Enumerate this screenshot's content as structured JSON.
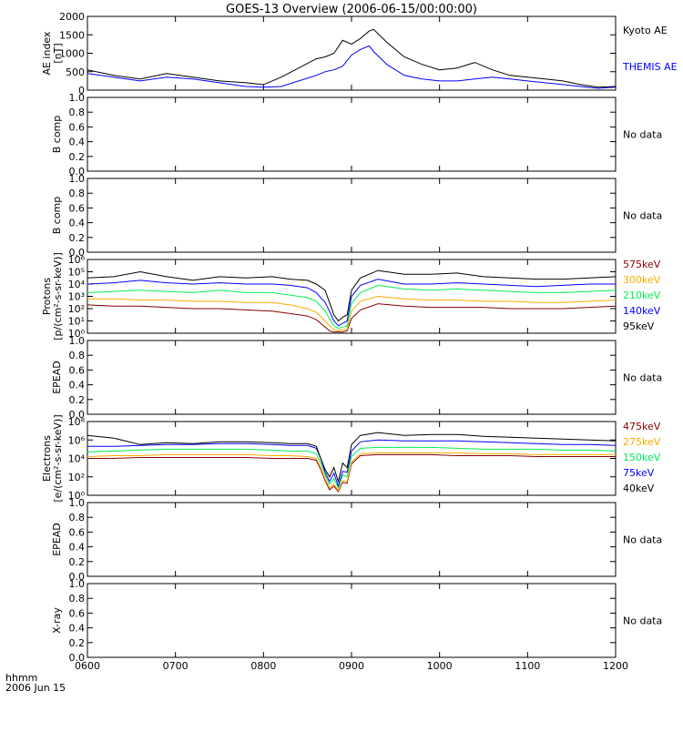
{
  "title": "GOES-13 Overview (2006-06-15/00:00:00)",
  "footer": {
    "line1": "hhmm",
    "line2": "2006 Jun 15"
  },
  "colors": {
    "black": "#000000",
    "blue": "#0000ff",
    "green": "#00ee55",
    "orange": "#ffaa00",
    "darkred": "#880000",
    "background": "#ffffff"
  },
  "xaxis": {
    "range": [
      "06:00",
      "12:00"
    ],
    "ticks": [
      "0600",
      "0700",
      "0800",
      "0900",
      "1000",
      "1100",
      "1200"
    ]
  },
  "panels": [
    {
      "id": "ae",
      "ylabel": [
        "AE index",
        "[nT]"
      ],
      "scale": "linear",
      "ylim": [
        0,
        2000
      ],
      "ticks": [
        "0",
        "500",
        "1000",
        "1500",
        "2000"
      ],
      "legend": [
        {
          "label": "Kyoto AE",
          "color": "#000000"
        },
        {
          "label": "THEMIS AE",
          "color": "#0000ff"
        }
      ]
    },
    {
      "id": "bcomp1",
      "ylabel": [
        "B comp"
      ],
      "scale": "linear",
      "ylim": [
        0,
        1
      ],
      "ticks": [
        "0.0",
        "0.2",
        "0.4",
        "0.6",
        "0.8",
        "1.0"
      ],
      "nodata": "No data"
    },
    {
      "id": "bcomp2",
      "ylabel": [
        "B comp"
      ],
      "scale": "linear",
      "ylim": [
        0,
        1
      ],
      "ticks": [
        "0.0",
        "0.2",
        "0.4",
        "0.6",
        "0.8",
        "1.0"
      ],
      "nodata": "No data"
    },
    {
      "id": "protons",
      "ylabel": [
        "Protons",
        "[p/(cm²-s-sr-keV)]"
      ],
      "scale": "log",
      "ylim": [
        0,
        6
      ],
      "ticks": [
        "10⁰",
        "10¹",
        "10²",
        "10³",
        "10⁴",
        "10⁵",
        "10⁶"
      ],
      "legend": [
        {
          "label": "575keV",
          "color": "#880000"
        },
        {
          "label": "300keV",
          "color": "#ffaa00"
        },
        {
          "label": "210keV",
          "color": "#00ee55"
        },
        {
          "label": "140keV",
          "color": "#0000ff"
        },
        {
          "label": "95keV",
          "color": "#000000"
        }
      ]
    },
    {
      "id": "epead1",
      "ylabel": [
        "EPEAD"
      ],
      "scale": "linear",
      "ylim": [
        0,
        1
      ],
      "ticks": [
        "0.0",
        "0.2",
        "0.4",
        "0.6",
        "0.8",
        "1.0"
      ],
      "nodata": "No data"
    },
    {
      "id": "electrons",
      "ylabel": [
        "Electrons",
        "[e/(cm²-s-sr-keV)]"
      ],
      "scale": "log",
      "ylim": [
        0,
        8
      ],
      "ticks": [
        "10⁰",
        "10²",
        "10⁴",
        "10⁶",
        "10⁸"
      ],
      "legend": [
        {
          "label": "475keV",
          "color": "#880000"
        },
        {
          "label": "275keV",
          "color": "#ffaa00"
        },
        {
          "label": "150keV",
          "color": "#00ee55"
        },
        {
          "label": "75keV",
          "color": "#0000ff"
        },
        {
          "label": "40keV",
          "color": "#000000"
        }
      ]
    },
    {
      "id": "epead2",
      "ylabel": [
        "EPEAD"
      ],
      "scale": "linear",
      "ylim": [
        0,
        1
      ],
      "ticks": [
        "0.0",
        "0.2",
        "0.4",
        "0.6",
        "0.8",
        "1.0"
      ],
      "nodata": "No data"
    },
    {
      "id": "xray",
      "ylabel": [
        "X-ray"
      ],
      "scale": "linear",
      "ylim": [
        0,
        1
      ],
      "ticks": [
        "0.0",
        "0.2",
        "0.4",
        "0.6",
        "0.8",
        "1.0"
      ],
      "nodata": "No data"
    }
  ],
  "chart_data": {
    "type": "line",
    "title": "GOES-13 Overview (2006-06-15/00:00:00)",
    "xlabel": "hhmm",
    "xrange_hours": [
      6,
      12
    ],
    "ae": {
      "x": [
        6.0,
        6.3,
        6.6,
        6.9,
        7.2,
        7.5,
        7.8,
        8.0,
        8.2,
        8.4,
        8.6,
        8.7,
        8.8,
        8.9,
        9.0,
        9.1,
        9.2,
        9.25,
        9.4,
        9.6,
        9.8,
        10.0,
        10.2,
        10.4,
        10.6,
        10.8,
        11.0,
        11.2,
        11.4,
        11.6,
        11.8,
        12.0
      ],
      "series": [
        {
          "name": "Kyoto AE",
          "values": [
            550,
            400,
            300,
            450,
            350,
            250,
            200,
            150,
            350,
            600,
            850,
            900,
            1000,
            1350,
            1250,
            1400,
            1600,
            1650,
            1300,
            900,
            700,
            550,
            600,
            750,
            550,
            400,
            350,
            300,
            250,
            150,
            80,
            100
          ]
        },
        {
          "name": "THEMIS AE",
          "values": [
            450,
            350,
            250,
            350,
            300,
            200,
            100,
            80,
            100,
            250,
            400,
            500,
            550,
            650,
            950,
            1100,
            1200,
            1050,
            700,
            400,
            300,
            250,
            250,
            300,
            350,
            300,
            250,
            200,
            150,
            100,
            50,
            80
          ]
        }
      ]
    },
    "protons": {
      "x": [
        6.0,
        6.3,
        6.6,
        6.9,
        7.2,
        7.5,
        7.8,
        8.1,
        8.3,
        8.5,
        8.6,
        8.7,
        8.75,
        8.8,
        8.85,
        8.9,
        8.95,
        9.0,
        9.1,
        9.3,
        9.6,
        9.9,
        10.2,
        10.5,
        10.8,
        11.1,
        11.4,
        11.7,
        12.0
      ],
      "series_log10": [
        {
          "name": "95keV",
          "values": [
            4.5,
            4.6,
            5.0,
            4.6,
            4.3,
            4.6,
            4.5,
            4.6,
            4.4,
            4.3,
            4.0,
            3.5,
            2.5,
            1.5,
            1.0,
            1.3,
            1.5,
            3.5,
            4.5,
            5.1,
            4.8,
            4.8,
            4.9,
            4.6,
            4.5,
            4.4,
            4.4,
            4.5,
            4.6
          ]
        },
        {
          "name": "140keV",
          "values": [
            4.0,
            4.1,
            4.3,
            4.1,
            4.0,
            4.1,
            4.0,
            4.0,
            3.9,
            3.7,
            3.3,
            2.5,
            1.8,
            1.0,
            0.6,
            0.8,
            1.0,
            3.0,
            3.9,
            4.4,
            4.0,
            4.0,
            4.1,
            4.0,
            3.9,
            3.8,
            3.9,
            4.0,
            4.0
          ]
        },
        {
          "name": "210keV",
          "values": [
            3.3,
            3.4,
            3.5,
            3.4,
            3.3,
            3.5,
            3.3,
            3.3,
            3.1,
            2.9,
            2.6,
            1.8,
            1.2,
            0.6,
            0.4,
            0.5,
            0.6,
            2.4,
            3.3,
            3.9,
            3.6,
            3.5,
            3.6,
            3.5,
            3.4,
            3.3,
            3.3,
            3.4,
            3.5
          ]
        },
        {
          "name": "300keV",
          "values": [
            2.8,
            2.8,
            2.7,
            2.7,
            2.6,
            2.6,
            2.5,
            2.5,
            2.3,
            2.0,
            1.7,
            1.0,
            0.6,
            0.3,
            0.2,
            0.3,
            0.3,
            1.8,
            2.6,
            3.0,
            2.8,
            2.7,
            2.7,
            2.6,
            2.6,
            2.5,
            2.5,
            2.6,
            2.7
          ]
        },
        {
          "name": "575keV",
          "values": [
            2.3,
            2.2,
            2.2,
            2.1,
            2.0,
            2.0,
            1.9,
            1.8,
            1.6,
            1.4,
            1.1,
            0.5,
            0.2,
            0.1,
            0.1,
            0.1,
            0.2,
            1.2,
            1.9,
            2.4,
            2.2,
            2.1,
            2.1,
            2.1,
            2.0,
            2.0,
            2.0,
            2.1,
            2.2
          ]
        }
      ]
    },
    "electrons": {
      "x": [
        6.0,
        6.3,
        6.6,
        6.9,
        7.2,
        7.5,
        7.8,
        8.1,
        8.3,
        8.5,
        8.6,
        8.65,
        8.7,
        8.75,
        8.8,
        8.85,
        8.9,
        8.95,
        9.0,
        9.1,
        9.3,
        9.6,
        9.9,
        10.2,
        10.5,
        10.8,
        11.1,
        11.4,
        11.7,
        12.0
      ],
      "series_log10": [
        {
          "name": "40keV",
          "values": [
            6.5,
            6.2,
            5.5,
            5.7,
            5.6,
            5.8,
            5.8,
            5.7,
            5.6,
            5.6,
            5.3,
            4.0,
            2.8,
            2.0,
            3.0,
            1.5,
            3.5,
            3.0,
            5.5,
            6.5,
            6.8,
            6.5,
            6.6,
            6.6,
            6.4,
            6.3,
            6.2,
            6.1,
            6.0,
            5.9
          ]
        },
        {
          "name": "75keV",
          "values": [
            5.3,
            5.3,
            5.4,
            5.5,
            5.5,
            5.6,
            5.6,
            5.5,
            5.4,
            5.4,
            5.1,
            4.0,
            2.5,
            1.5,
            2.4,
            1.0,
            2.6,
            2.5,
            4.8,
            5.8,
            6.0,
            5.9,
            5.9,
            5.9,
            5.8,
            5.7,
            5.6,
            5.5,
            5.5,
            5.4
          ]
        },
        {
          "name": "150keV",
          "values": [
            4.7,
            4.8,
            4.9,
            5.0,
            5.0,
            5.0,
            5.0,
            4.9,
            4.8,
            4.8,
            4.5,
            3.5,
            2.2,
            1.2,
            1.8,
            0.8,
            2.2,
            2.0,
            4.2,
            5.1,
            5.2,
            5.2,
            5.2,
            5.1,
            5.0,
            5.0,
            5.0,
            4.9,
            4.9,
            4.8
          ]
        },
        {
          "name": "275keV",
          "values": [
            4.2,
            4.3,
            4.3,
            4.4,
            4.4,
            4.4,
            4.4,
            4.3,
            4.3,
            4.2,
            4.0,
            3.0,
            1.8,
            0.8,
            1.2,
            0.5,
            1.6,
            1.5,
            3.6,
            4.5,
            4.6,
            4.6,
            4.6,
            4.6,
            4.5,
            4.5,
            4.4,
            4.4,
            4.4,
            4.4
          ]
        },
        {
          "name": "475keV",
          "values": [
            4.0,
            4.0,
            4.1,
            4.1,
            4.1,
            4.1,
            4.1,
            4.0,
            4.0,
            4.0,
            3.8,
            2.8,
            1.6,
            0.6,
            1.0,
            0.4,
            1.4,
            1.3,
            3.4,
            4.3,
            4.4,
            4.4,
            4.4,
            4.3,
            4.3,
            4.3,
            4.2,
            4.2,
            4.2,
            4.2
          ]
        }
      ]
    }
  }
}
